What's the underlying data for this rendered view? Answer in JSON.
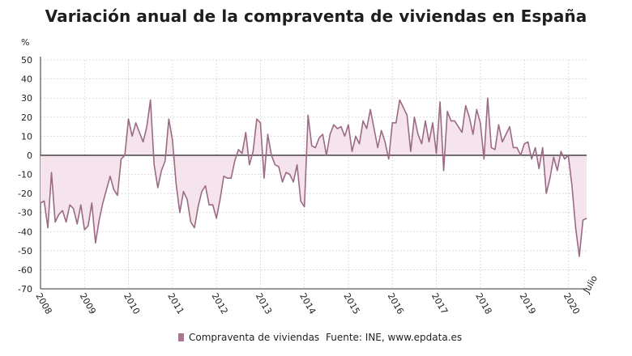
{
  "title": "Variación anual de la compraventa de viviendas en España",
  "legend": {
    "series_label": "Compraventa de viviendas"
  },
  "source": "Fuente: INE, www.epdata.es",
  "colors": {
    "line": "#9b6a85",
    "fill": "#f5e4ec",
    "axis": "#333333",
    "grid": "#c7c7c7"
  },
  "chart_data": {
    "type": "area",
    "ylabel": "%",
    "ylim": [
      -70,
      50
    ],
    "yticks": [
      50,
      40,
      30,
      20,
      10,
      0,
      -10,
      -20,
      -30,
      -40,
      -50,
      -60,
      -70
    ],
    "x_tick_labels": [
      "2008",
      "2009",
      "2010",
      "2011",
      "2012",
      "2013",
      "2014",
      "2015",
      "2016",
      "2017",
      "2018",
      "2019",
      "2020",
      "Julio"
    ],
    "x_start": "2008-01",
    "x_end": "2020-07",
    "grid": true,
    "series": [
      {
        "name": "Compraventa de viviendas",
        "values": [
          -25,
          -24,
          -38,
          -9,
          -35,
          -31,
          -29,
          -35,
          -26,
          -28,
          -36,
          -26,
          -39,
          -37,
          -25,
          -46,
          -34,
          -25,
          -18,
          -11,
          -18,
          -21,
          -2,
          0,
          19,
          10,
          17,
          12,
          7,
          15,
          29,
          -5,
          -17,
          -8,
          -3,
          19,
          8,
          -15,
          -30,
          -19,
          -23,
          -35,
          -38,
          -27,
          -19,
          -16,
          -26,
          -26,
          -33,
          -23,
          -11,
          -12,
          -12,
          -3,
          3,
          1,
          12,
          -5,
          2,
          19,
          17,
          -12,
          11,
          0,
          -5,
          -6,
          -14,
          -9,
          -10,
          -14,
          -5,
          -24,
          -27,
          21,
          5,
          4,
          9,
          11,
          0,
          11,
          16,
          14,
          15,
          10,
          16,
          2,
          10,
          6,
          18,
          14,
          24,
          14,
          4,
          13,
          7,
          -2,
          17,
          17,
          29,
          25,
          21,
          2,
          20,
          11,
          6,
          18,
          7,
          17,
          1,
          28,
          -8,
          23,
          18,
          18,
          15,
          12,
          26,
          20,
          11,
          24,
          17,
          -2,
          30,
          4,
          3,
          16,
          7,
          11,
          15,
          4,
          4,
          0,
          6,
          7,
          -2,
          4,
          -7,
          4,
          -20,
          -12,
          -1,
          -8,
          2,
          -2,
          0,
          -16,
          -38,
          -53,
          -34,
          -33
        ]
      }
    ]
  }
}
